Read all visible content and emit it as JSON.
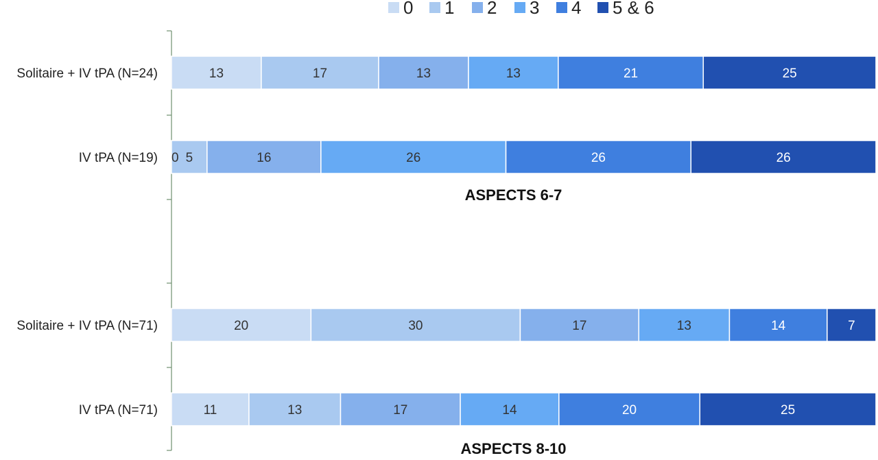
{
  "chart_data": {
    "type": "bar",
    "orientation": "horizontal",
    "stacked": true,
    "normalized": "percent",
    "legend": {
      "placement": "top",
      "entries": [
        "0",
        "1",
        "2",
        "3",
        "4",
        "5 & 6"
      ]
    },
    "colors": [
      "#c9dcf4",
      "#a9c9f0",
      "#85b0ec",
      "#66aaf4",
      "#3f7fdf",
      "#2150b0"
    ],
    "label_colors": [
      "#333333",
      "#333333",
      "#333333",
      "#333333",
      "#ffffff",
      "#ffffff"
    ],
    "panels": [
      {
        "title": "ASPECTS 6-7",
        "categories": [
          "Solitaire + IV tPA (N=24)",
          "IV tPA (N=19)"
        ],
        "series": [
          {
            "name": "0",
            "values": [
              13,
              0
            ]
          },
          {
            "name": "1",
            "values": [
              17,
              5
            ]
          },
          {
            "name": "2",
            "values": [
              13,
              16
            ]
          },
          {
            "name": "3",
            "values": [
              13,
              26
            ]
          },
          {
            "name": "4",
            "values": [
              21,
              26
            ]
          },
          {
            "name": "5 & 6",
            "values": [
              25,
              26
            ]
          }
        ]
      },
      {
        "title": "ASPECTS 8-10",
        "categories": [
          "Solitaire + IV tPA (N=71)",
          "IV tPA (N=71)"
        ],
        "series": [
          {
            "name": "0",
            "values": [
              20,
              11
            ]
          },
          {
            "name": "1",
            "values": [
              30,
              13
            ]
          },
          {
            "name": "2",
            "values": [
              17,
              17
            ]
          },
          {
            "name": "3",
            "values": [
              13,
              14
            ]
          },
          {
            "name": "4",
            "values": [
              14,
              20
            ]
          },
          {
            "name": "5 & 6",
            "values": [
              7,
              25
            ]
          }
        ]
      }
    ],
    "grid": false
  }
}
